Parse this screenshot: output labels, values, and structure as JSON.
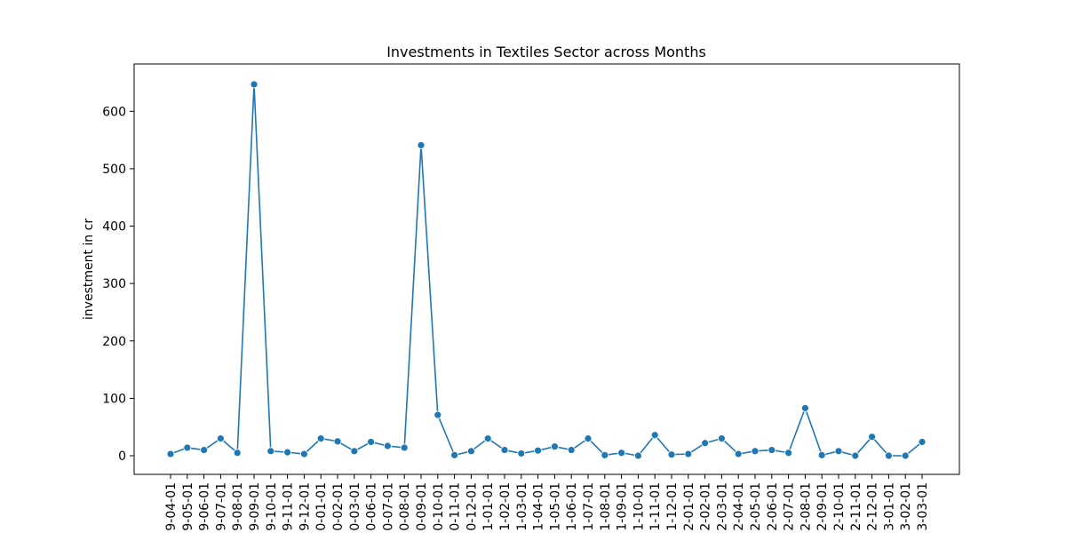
{
  "chart_data": {
    "type": "line",
    "title": "Investments in Textiles Sector across Months",
    "xlabel": "",
    "ylabel": "investment in cr",
    "ylim": [
      -32.5,
      682.5
    ],
    "yticks": [
      0,
      100,
      200,
      300,
      400,
      500,
      600
    ],
    "grid": false,
    "legend": "none",
    "marker": "circle",
    "line_color": "#1f77b4",
    "x": [
      "9-04-01",
      "9-05-01",
      "9-06-01",
      "9-07-01",
      "9-08-01",
      "9-09-01",
      "9-10-01",
      "9-11-01",
      "9-12-01",
      "0-01-01",
      "0-02-01",
      "0-03-01",
      "0-06-01",
      "0-07-01",
      "0-08-01",
      "0-09-01",
      "0-10-01",
      "0-11-01",
      "0-12-01",
      "1-01-01",
      "1-02-01",
      "1-03-01",
      "1-04-01",
      "1-05-01",
      "1-06-01",
      "1-07-01",
      "1-08-01",
      "1-09-01",
      "1-10-01",
      "1-11-01",
      "1-12-01",
      "2-01-01",
      "2-02-01",
      "2-03-01",
      "2-04-01",
      "2-05-01",
      "2-06-01",
      "2-07-01",
      "2-08-01",
      "2-09-01",
      "2-10-01",
      "2-11-01",
      "2-12-01",
      "3-01-01",
      "3-02-01",
      "3-03-01"
    ],
    "series": [
      {
        "values": [
          3,
          14,
          10,
          30,
          5,
          647,
          8,
          6,
          3,
          30,
          25,
          8,
          24,
          17,
          14,
          541,
          71,
          1,
          8,
          30,
          10,
          4,
          9,
          16,
          10,
          30,
          1,
          5,
          0,
          36,
          2,
          3,
          22,
          30,
          3,
          8,
          10,
          5,
          83,
          1,
          8,
          0,
          33,
          0,
          0,
          24
        ]
      }
    ]
  }
}
